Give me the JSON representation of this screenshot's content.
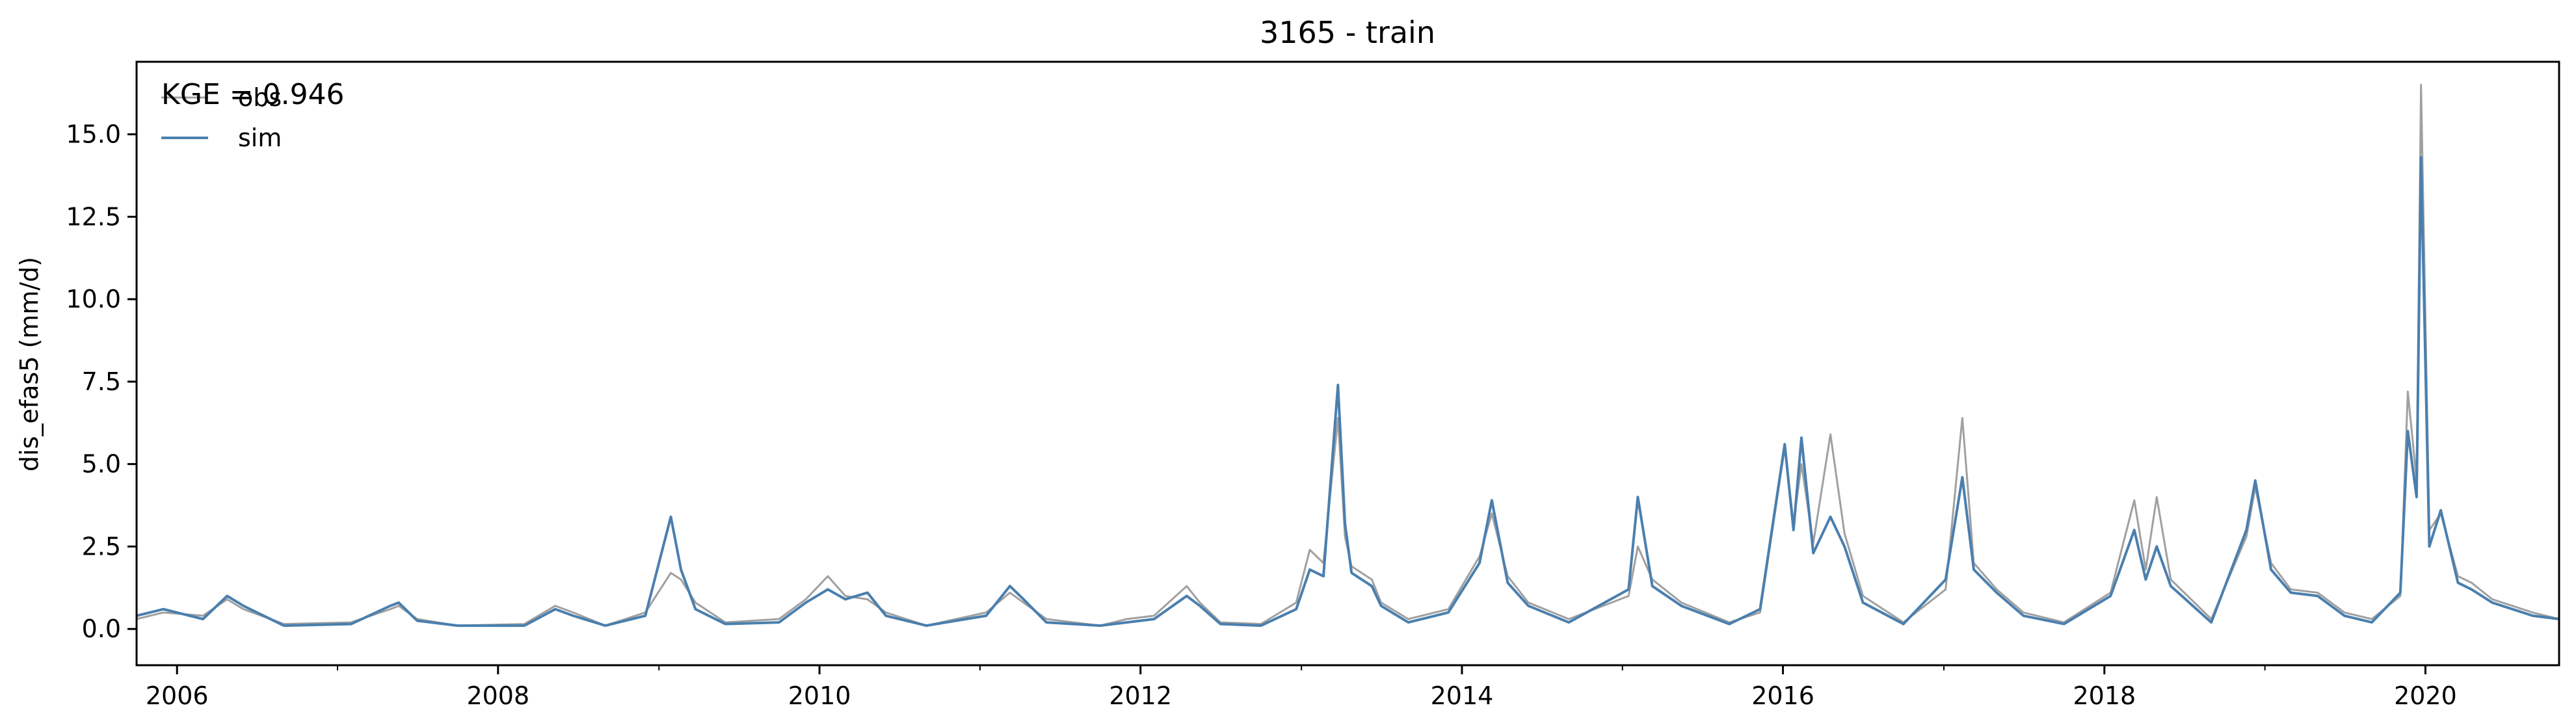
{
  "chart_data": {
    "type": "line",
    "title": "3165 - train",
    "xlabel": "",
    "ylabel": "dis_efas5 (mm/d)",
    "annotation": "KGE = 0.946",
    "legend_position": "top-left",
    "grid": false,
    "xlim": [
      "2005-10-01",
      "2020-10-31"
    ],
    "ylim": [
      -1.1,
      17.2
    ],
    "x_ticks": [
      "2006",
      "2008",
      "2010",
      "2012",
      "2014",
      "2016",
      "2018",
      "2020"
    ],
    "y_ticks": [
      "0.0",
      "2.5",
      "5.0",
      "7.5",
      "10.0",
      "12.5",
      "15.0"
    ],
    "series": [
      {
        "name": "obs",
        "color": "#a0a0a0",
        "x": [
          "2005-10-01",
          "2005-12-01",
          "2006-03-01",
          "2006-04-25",
          "2006-06-01",
          "2006-09-01",
          "2007-02-01",
          "2007-05-01",
          "2007-05-20",
          "2007-07-01",
          "2007-10-01",
          "2008-03-01",
          "2008-05-10",
          "2008-06-20",
          "2008-09-01",
          "2008-12-01",
          "2009-01-28",
          "2009-02-20",
          "2009-03-25",
          "2009-06-01",
          "2009-10-01",
          "2009-12-01",
          "2010-01-20",
          "2010-03-01",
          "2010-04-20",
          "2010-06-01",
          "2010-09-01",
          "2011-01-15",
          "2011-03-10",
          "2011-04-10",
          "2011-06-01",
          "2011-10-01",
          "2011-12-01",
          "2012-02-01",
          "2012-04-15",
          "2012-05-15",
          "2012-07-01",
          "2012-10-01",
          "2012-12-20",
          "2013-01-20",
          "2013-02-20",
          "2013-03-25",
          "2013-04-10",
          "2013-04-25",
          "2013-06-10",
          "2013-07-01",
          "2013-09-01",
          "2013-12-01",
          "2014-02-10",
          "2014-03-10",
          "2014-04-15",
          "2014-06-01",
          "2014-09-01",
          "2015-01-15",
          "2015-02-05",
          "2015-03-10",
          "2015-05-15",
          "2015-09-01",
          "2015-11-10",
          "2016-01-05",
          "2016-01-25",
          "2016-02-12",
          "2016-03-10",
          "2016-04-18",
          "2016-05-20",
          "2016-07-01",
          "2016-10-01",
          "2017-01-05",
          "2017-02-12",
          "2017-03-10",
          "2017-05-01",
          "2017-07-01",
          "2017-10-01",
          "2018-01-15",
          "2018-03-10",
          "2018-04-05",
          "2018-04-30",
          "2018-06-01",
          "2018-09-01",
          "2018-11-20",
          "2018-12-10",
          "2019-01-15",
          "2019-03-01",
          "2019-05-01",
          "2019-07-01",
          "2019-09-01",
          "2019-11-05",
          "2019-11-22",
          "2019-12-12",
          "2019-12-22",
          "2020-01-10",
          "2020-02-05",
          "2020-03-15",
          "2020-04-15",
          "2020-06-01",
          "2020-09-01",
          "2020-10-31"
        ],
        "values": [
          0.3,
          0.5,
          0.4,
          0.9,
          0.6,
          0.15,
          0.2,
          0.6,
          0.7,
          0.3,
          0.1,
          0.15,
          0.7,
          0.5,
          0.1,
          0.5,
          1.7,
          1.5,
          0.8,
          0.2,
          0.3,
          0.9,
          1.6,
          1.0,
          0.9,
          0.5,
          0.1,
          0.5,
          1.1,
          0.8,
          0.3,
          0.1,
          0.3,
          0.4,
          1.3,
          0.8,
          0.2,
          0.15,
          0.8,
          2.4,
          2.0,
          6.4,
          2.8,
          1.9,
          1.5,
          0.8,
          0.3,
          0.6,
          2.2,
          3.5,
          1.6,
          0.8,
          0.3,
          1.0,
          2.5,
          1.5,
          0.8,
          0.2,
          0.5,
          5.5,
          3.2,
          5.0,
          2.6,
          5.9,
          2.9,
          1.0,
          0.2,
          1.2,
          6.4,
          2.0,
          1.2,
          0.5,
          0.2,
          1.1,
          3.9,
          1.8,
          4.0,
          1.5,
          0.3,
          2.8,
          4.3,
          2.0,
          1.2,
          1.1,
          0.5,
          0.3,
          1.0,
          7.2,
          4.5,
          16.5,
          3.0,
          3.5,
          1.6,
          1.4,
          0.9,
          0.5,
          0.3
        ]
      },
      {
        "name": "sim",
        "color": "#4a7fae",
        "x": [
          "2005-10-01",
          "2005-12-01",
          "2006-03-01",
          "2006-04-25",
          "2006-06-01",
          "2006-09-01",
          "2007-02-01",
          "2007-05-01",
          "2007-05-20",
          "2007-07-01",
          "2007-10-01",
          "2008-03-01",
          "2008-05-10",
          "2008-06-20",
          "2008-09-01",
          "2008-12-01",
          "2009-01-28",
          "2009-02-20",
          "2009-03-25",
          "2009-06-01",
          "2009-10-01",
          "2009-12-01",
          "2010-01-20",
          "2010-03-01",
          "2010-04-20",
          "2010-06-01",
          "2010-09-01",
          "2011-01-15",
          "2011-03-10",
          "2011-04-10",
          "2011-06-01",
          "2011-10-01",
          "2011-12-01",
          "2012-02-01",
          "2012-04-15",
          "2012-05-15",
          "2012-07-01",
          "2012-10-01",
          "2012-12-20",
          "2013-01-20",
          "2013-02-20",
          "2013-03-25",
          "2013-04-10",
          "2013-04-25",
          "2013-06-10",
          "2013-07-01",
          "2013-09-01",
          "2013-12-01",
          "2014-02-10",
          "2014-03-10",
          "2014-04-15",
          "2014-06-01",
          "2014-09-01",
          "2015-01-15",
          "2015-02-05",
          "2015-03-10",
          "2015-05-15",
          "2015-09-01",
          "2015-11-10",
          "2016-01-05",
          "2016-01-25",
          "2016-02-12",
          "2016-03-10",
          "2016-04-18",
          "2016-05-20",
          "2016-07-01",
          "2016-10-01",
          "2017-01-05",
          "2017-02-12",
          "2017-03-10",
          "2017-05-01",
          "2017-07-01",
          "2017-10-01",
          "2018-01-15",
          "2018-03-10",
          "2018-04-05",
          "2018-04-30",
          "2018-06-01",
          "2018-09-01",
          "2018-11-20",
          "2018-12-10",
          "2019-01-15",
          "2019-03-01",
          "2019-05-01",
          "2019-07-01",
          "2019-09-01",
          "2019-11-05",
          "2019-11-22",
          "2019-12-12",
          "2019-12-22",
          "2020-01-10",
          "2020-02-05",
          "2020-03-15",
          "2020-04-15",
          "2020-06-01",
          "2020-09-01",
          "2020-10-31"
        ],
        "values": [
          0.4,
          0.6,
          0.3,
          1.0,
          0.7,
          0.1,
          0.15,
          0.7,
          0.8,
          0.25,
          0.1,
          0.1,
          0.6,
          0.4,
          0.1,
          0.4,
          3.4,
          1.8,
          0.6,
          0.15,
          0.2,
          0.8,
          1.2,
          0.9,
          1.1,
          0.4,
          0.1,
          0.4,
          1.3,
          0.9,
          0.2,
          0.1,
          0.2,
          0.3,
          1.0,
          0.7,
          0.15,
          0.1,
          0.6,
          1.8,
          1.6,
          7.4,
          3.2,
          1.7,
          1.3,
          0.7,
          0.2,
          0.5,
          2.0,
          3.9,
          1.4,
          0.7,
          0.2,
          1.2,
          4.0,
          1.3,
          0.7,
          0.15,
          0.6,
          5.6,
          3.0,
          5.8,
          2.3,
          3.4,
          2.5,
          0.8,
          0.15,
          1.5,
          4.6,
          1.8,
          1.1,
          0.4,
          0.15,
          1.0,
          3.0,
          1.5,
          2.5,
          1.3,
          0.2,
          3.0,
          4.5,
          1.8,
          1.1,
          1.0,
          0.4,
          0.2,
          1.1,
          6.0,
          4.0,
          14.3,
          2.5,
          3.6,
          1.4,
          1.2,
          0.8,
          0.4,
          0.3
        ]
      }
    ]
  }
}
